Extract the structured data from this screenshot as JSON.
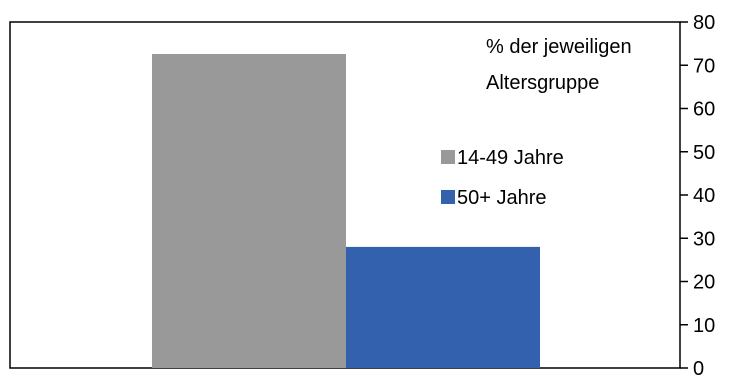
{
  "chart_data": {
    "type": "bar",
    "categories": [
      ""
    ],
    "series": [
      {
        "name": "14-49 Jahre",
        "values": [
          72.6
        ],
        "color": "#999999"
      },
      {
        "name": "50+ Jahre",
        "values": [
          28.0
        ],
        "color": "#3361ad"
      }
    ],
    "title": "",
    "xlabel": "",
    "ylabel": "% der jeweiligen Altersgruppe",
    "ylabel_lines": [
      "% der jeweiligen",
      "Altersgruppe"
    ],
    "ylim": [
      0,
      80
    ],
    "yticks": [
      0,
      10,
      20,
      30,
      40,
      50,
      60,
      70,
      80
    ],
    "y_axis_side": "right",
    "grid": false,
    "legend_position": "right"
  }
}
